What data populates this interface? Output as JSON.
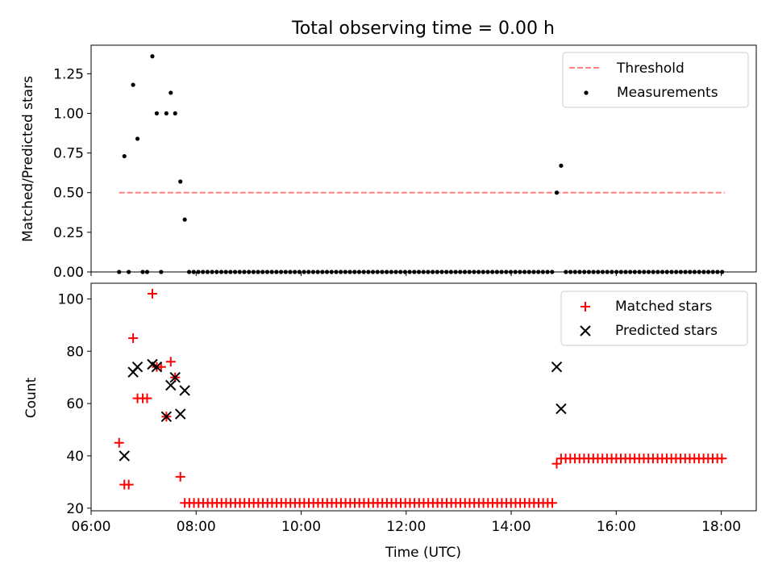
{
  "chart_data": [
    {
      "type": "scatter",
      "title": "Total observing time = 0.00 h",
      "xlabel": "",
      "ylabel": "Matched/Predicted stars",
      "xlim": [
        "06:00",
        "18:40"
      ],
      "ylim": [
        0,
        1.43
      ],
      "x_ticks": [
        "06:00",
        "08:00",
        "10:00",
        "12:00",
        "14:00",
        "16:00",
        "18:00"
      ],
      "y_ticks": [
        0.0,
        0.25,
        0.5,
        0.75,
        1.0,
        1.25
      ],
      "y_tick_labels": [
        "0.00",
        "0.25",
        "0.50",
        "0.75",
        "1.00",
        "1.25"
      ],
      "legend_position": "top-right",
      "series": [
        {
          "name": "Threshold",
          "kind": "dashed-line",
          "color": "#ff8080",
          "x": [
            "06:32",
            "18:04"
          ],
          "y": [
            0.5,
            0.5
          ]
        },
        {
          "name": "Measurements",
          "kind": "dots",
          "color": "#000000",
          "points": [
            [
              "06:32",
              0
            ],
            [
              "06:38",
              0.73
            ],
            [
              "06:43",
              0
            ],
            [
              "06:48",
              1.18
            ],
            [
              "06:53",
              0.84
            ],
            [
              "06:59",
              0
            ],
            [
              "07:04",
              0
            ],
            [
              "07:10",
              1.36
            ],
            [
              "07:15",
              1.0
            ],
            [
              "07:20",
              0
            ],
            [
              "07:26",
              1.0
            ],
            [
              "07:31",
              1.13
            ],
            [
              "07:36",
              1.0
            ],
            [
              "07:42",
              0.57
            ],
            [
              "07:47",
              0.33
            ],
            [
              "14:52",
              0.5
            ],
            [
              "14:57",
              0.67
            ]
          ],
          "zero_run": {
            "from": "07:52",
            "to": "18:04",
            "step_min": 5.25,
            "value": 0,
            "except": [
              "14:52",
              "14:57"
            ]
          }
        }
      ]
    },
    {
      "type": "scatter",
      "title": "",
      "xlabel": "Time (UTC)",
      "ylabel": "Count",
      "xlim": [
        "06:00",
        "18:40"
      ],
      "ylim": [
        19,
        106
      ],
      "x_ticks": [
        "06:00",
        "08:00",
        "10:00",
        "12:00",
        "14:00",
        "16:00",
        "18:00"
      ],
      "x_tick_labels": [
        "06:00",
        "08:00",
        "10:00",
        "12:00",
        "14:00",
        "16:00",
        "18:00"
      ],
      "y_ticks": [
        20,
        40,
        60,
        80,
        100
      ],
      "y_tick_labels": [
        "20",
        "40",
        "60",
        "80",
        "100"
      ],
      "legend_position": "top-right",
      "series": [
        {
          "name": "Matched stars",
          "marker": "plus",
          "color": "#ff0000",
          "points": [
            [
              "06:32",
              45
            ],
            [
              "06:38",
              29
            ],
            [
              "06:43",
              29
            ],
            [
              "06:48",
              85
            ],
            [
              "06:53",
              62
            ],
            [
              "06:59",
              62
            ],
            [
              "07:04",
              62
            ],
            [
              "07:10",
              102
            ],
            [
              "07:15",
              74
            ],
            [
              "07:20",
              74
            ],
            [
              "07:26",
              55
            ],
            [
              "07:31",
              76
            ],
            [
              "07:36",
              70
            ],
            [
              "07:42",
              32
            ],
            [
              "14:52",
              37
            ]
          ],
          "runs": [
            {
              "from": "07:47",
              "to": "14:47",
              "step_min": 5.25,
              "value": 22
            },
            {
              "from": "14:57",
              "to": "18:04",
              "step_min": 5.25,
              "value": 39
            }
          ]
        },
        {
          "name": "Predicted stars",
          "marker": "x",
          "color": "#000000",
          "points": [
            [
              "06:38",
              40
            ],
            [
              "06:48",
              72
            ],
            [
              "06:53",
              74
            ],
            [
              "07:10",
              75
            ],
            [
              "07:15",
              74
            ],
            [
              "07:26",
              55
            ],
            [
              "07:31",
              67
            ],
            [
              "07:36",
              70
            ],
            [
              "07:42",
              56
            ],
            [
              "07:47",
              65
            ],
            [
              "14:52",
              74
            ],
            [
              "14:57",
              58
            ]
          ]
        }
      ]
    }
  ]
}
